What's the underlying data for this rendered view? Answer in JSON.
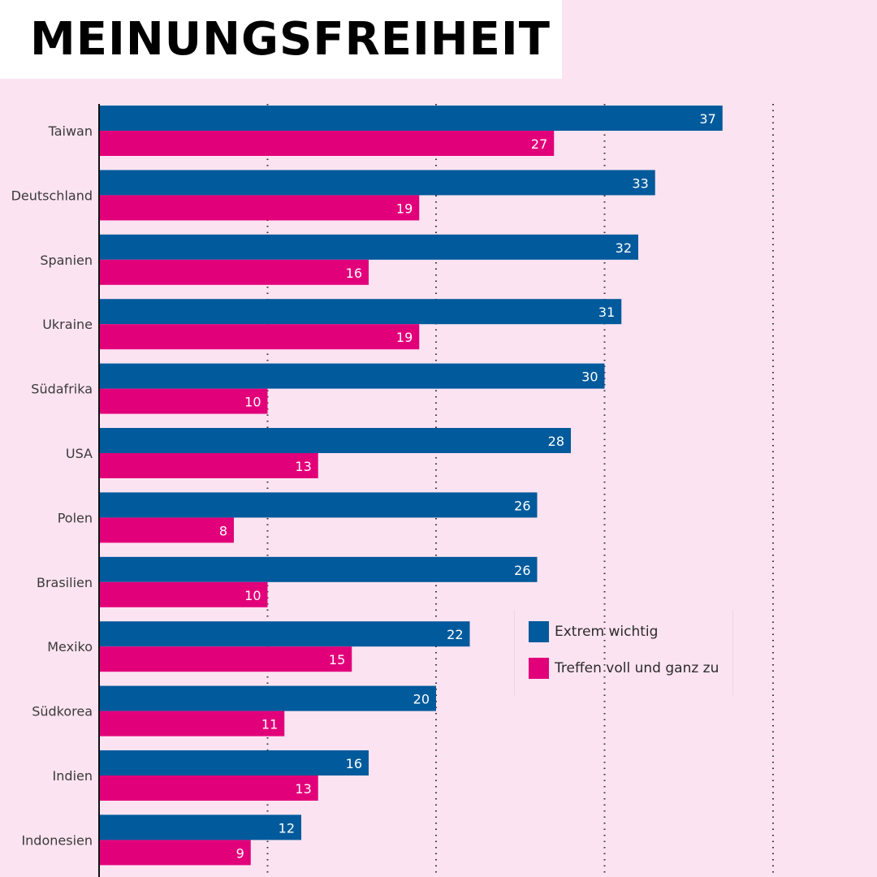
{
  "header": {
    "title": "MEINUNGSFREIHEIT"
  },
  "colors": {
    "series1": "#005a9b",
    "series2": "#e2007a",
    "background": "#fce3f1"
  },
  "chart_data": {
    "type": "bar",
    "orientation": "horizontal",
    "title": "MEINUNGSFREIHEIT",
    "xlabel": "",
    "ylabel": "",
    "xlim": [
      0,
      45
    ],
    "grid": true,
    "gridlines": [
      10,
      20,
      30,
      40
    ],
    "categories": [
      "Taiwan",
      "Deutschland",
      "Spanien",
      "Ukraine",
      "Südafrika",
      "USA",
      "Polen",
      "Brasilien",
      "Mexiko",
      "Südkorea",
      "Indien",
      "Indonesien"
    ],
    "series": [
      {
        "name": "Extrem wichtig",
        "color": "#005a9b",
        "values": [
          37,
          33,
          32,
          31,
          30,
          28,
          26,
          26,
          22,
          20,
          16,
          12
        ]
      },
      {
        "name": "Treffen voll und ganz zu",
        "color": "#e2007a",
        "values": [
          27,
          19,
          16,
          19,
          10,
          13,
          8,
          10,
          15,
          11,
          13,
          9
        ]
      }
    ],
    "legend_position": "right-lower"
  }
}
